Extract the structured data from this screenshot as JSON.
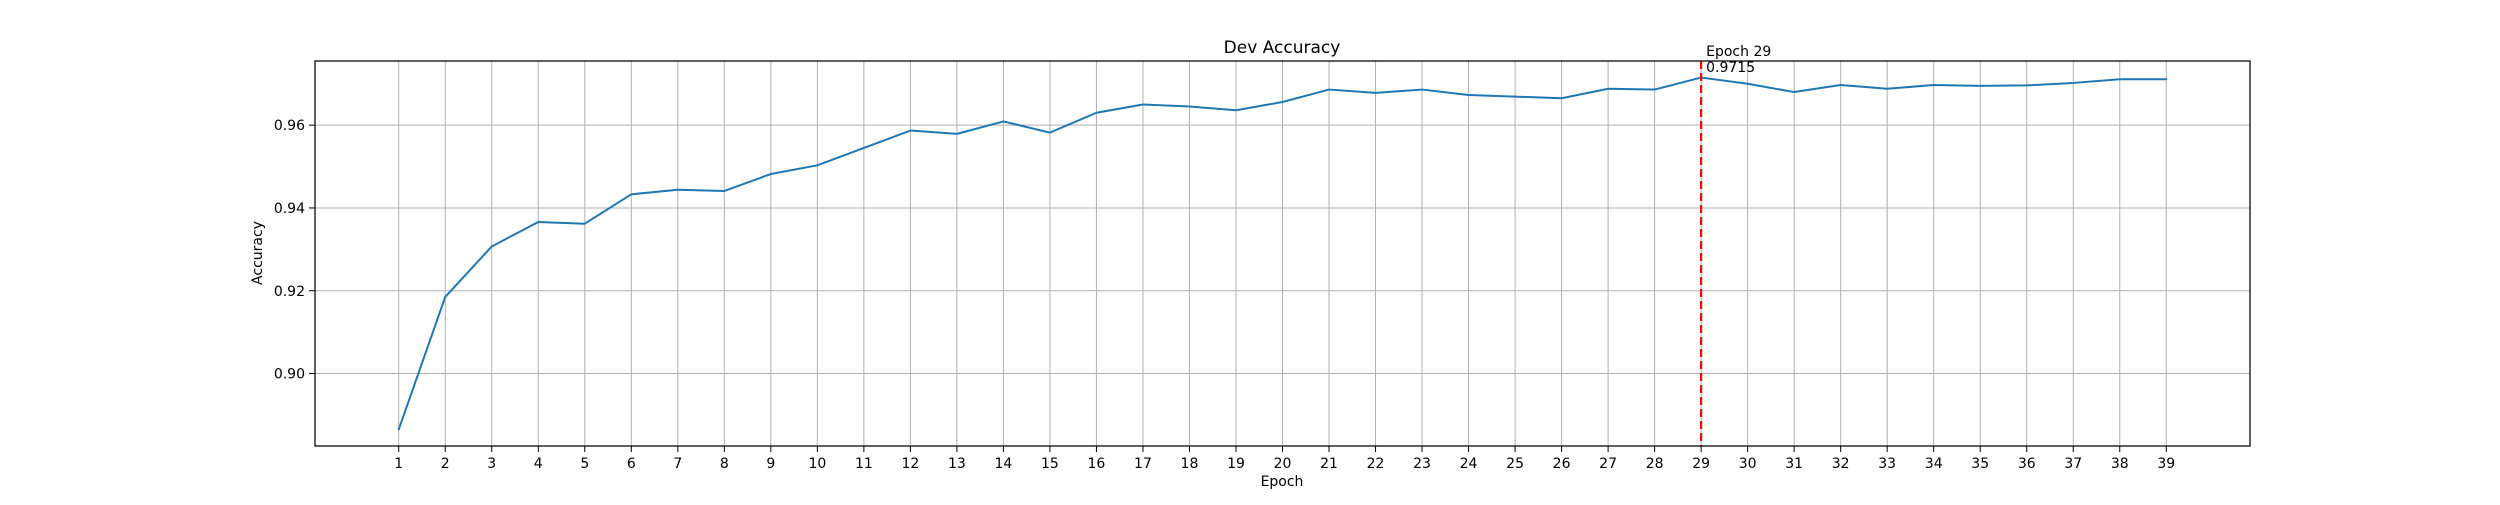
{
  "chart_data": {
    "type": "line",
    "title": "Dev Accuracy",
    "xlabel": "Epoch",
    "ylabel": "Accuracy",
    "xlim": [
      -0.8,
      40.8
    ],
    "ylim": [
      0.8825,
      0.9755
    ],
    "x": [
      1,
      2,
      3,
      4,
      5,
      6,
      7,
      8,
      9,
      10,
      11,
      12,
      13,
      14,
      15,
      16,
      17,
      18,
      19,
      20,
      21,
      22,
      23,
      24,
      25,
      26,
      27,
      28,
      29,
      30,
      31,
      32,
      33,
      34,
      35,
      36,
      37,
      38,
      39
    ],
    "x_tick_labels": [
      "1",
      "2",
      "3",
      "4",
      "5",
      "6",
      "7",
      "8",
      "9",
      "10",
      "11",
      "12",
      "13",
      "14",
      "15",
      "16",
      "17",
      "18",
      "19",
      "20",
      "21",
      "22",
      "23",
      "24",
      "25",
      "26",
      "27",
      "28",
      "29",
      "30",
      "31",
      "32",
      "33",
      "34",
      "35",
      "36",
      "37",
      "38",
      "39"
    ],
    "y_ticks": [
      0.9,
      0.92,
      0.94,
      0.96
    ],
    "y_tick_labels": [
      "0.90",
      "0.92",
      "0.94",
      "0.96"
    ],
    "series": [
      {
        "color": "#1f77b4",
        "values": [
          0.8865,
          0.9185,
          0.9307,
          0.9366,
          0.9362,
          0.9433,
          0.9444,
          0.9441,
          0.9482,
          0.9503,
          0.9545,
          0.9587,
          0.9579,
          0.9609,
          0.9582,
          0.963,
          0.965,
          0.9645,
          0.9636,
          0.9656,
          0.9686,
          0.9678,
          0.9686,
          0.9673,
          0.9669,
          0.9665,
          0.9688,
          0.9686,
          0.9715,
          0.97,
          0.968,
          0.9697,
          0.9688,
          0.9697,
          0.9695,
          0.9696,
          0.9702,
          0.9711,
          0.9711
        ]
      }
    ],
    "grid": true,
    "best_marker": {
      "epoch": 29,
      "line_color": "#ff0000",
      "line_style": "dashed",
      "annotation_line1": "Epoch 29",
      "annotation_line2": "0.9715"
    }
  }
}
